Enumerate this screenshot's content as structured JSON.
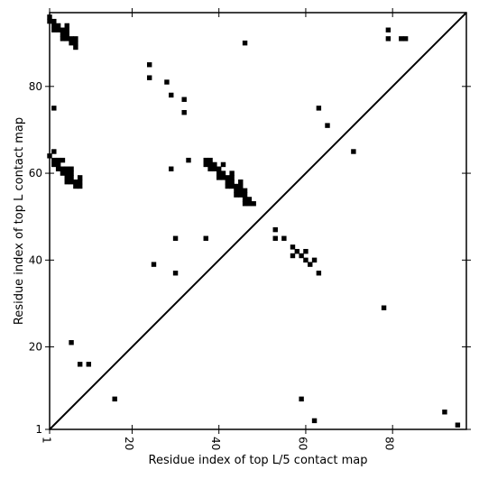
{
  "chart_data": {
    "type": "scatter",
    "xlabel": "Residue index of top L/5 contact map",
    "ylabel": "Residue index of top L contact map",
    "xlim": [
      1,
      97
    ],
    "ylim": [
      1,
      97
    ],
    "xticks": [
      1,
      20,
      40,
      60,
      80
    ],
    "yticks": [
      1,
      20,
      40,
      60,
      80
    ],
    "grid": false,
    "marker": "square",
    "marker_color": "#000000",
    "diagonal": {
      "from": [
        1,
        1
      ],
      "to": [
        97,
        97
      ]
    },
    "series": [
      {
        "points": [
          [
            1,
            96
          ],
          [
            1,
            95
          ],
          [
            2,
            95
          ],
          [
            2,
            94
          ],
          [
            2,
            93
          ],
          [
            3,
            94
          ],
          [
            3,
            93
          ],
          [
            4,
            93
          ],
          [
            4,
            92
          ],
          [
            4,
            91
          ],
          [
            5,
            94
          ],
          [
            5,
            93
          ],
          [
            5,
            92
          ],
          [
            5,
            91
          ],
          [
            6,
            91
          ],
          [
            6,
            90
          ],
          [
            7,
            91
          ],
          [
            7,
            90
          ],
          [
            7,
            89
          ],
          [
            2,
            75
          ],
          [
            1,
            64
          ],
          [
            2,
            65
          ],
          [
            2,
            63
          ],
          [
            2,
            62
          ],
          [
            3,
            63
          ],
          [
            3,
            62
          ],
          [
            3,
            61
          ],
          [
            4,
            63
          ],
          [
            4,
            61
          ],
          [
            4,
            60
          ],
          [
            5,
            61
          ],
          [
            5,
            60
          ],
          [
            5,
            59
          ],
          [
            5,
            58
          ],
          [
            6,
            61
          ],
          [
            6,
            60
          ],
          [
            6,
            59
          ],
          [
            6,
            58
          ],
          [
            7,
            58
          ],
          [
            7,
            57
          ],
          [
            8,
            59
          ],
          [
            8,
            58
          ],
          [
            8,
            57
          ],
          [
            6,
            21
          ],
          [
            8,
            16
          ],
          [
            10,
            16
          ],
          [
            16,
            8
          ],
          [
            24,
            85
          ],
          [
            24,
            82
          ],
          [
            28,
            81
          ],
          [
            29,
            78
          ],
          [
            32,
            77
          ],
          [
            32,
            74
          ],
          [
            29,
            61
          ],
          [
            33,
            63
          ],
          [
            37,
            63
          ],
          [
            37,
            62
          ],
          [
            38,
            63
          ],
          [
            38,
            62
          ],
          [
            38,
            61
          ],
          [
            39,
            62
          ],
          [
            39,
            61
          ],
          [
            40,
            61
          ],
          [
            40,
            60
          ],
          [
            40,
            59
          ],
          [
            41,
            62
          ],
          [
            41,
            60
          ],
          [
            41,
            59
          ],
          [
            42,
            59
          ],
          [
            42,
            58
          ],
          [
            42,
            57
          ],
          [
            43,
            60
          ],
          [
            43,
            59
          ],
          [
            43,
            58
          ],
          [
            43,
            57
          ],
          [
            44,
            57
          ],
          [
            44,
            56
          ],
          [
            44,
            55
          ],
          [
            45,
            58
          ],
          [
            45,
            57
          ],
          [
            45,
            56
          ],
          [
            45,
            55
          ],
          [
            46,
            56
          ],
          [
            46,
            55
          ],
          [
            46,
            54
          ],
          [
            46,
            53
          ],
          [
            47,
            54
          ],
          [
            47,
            53
          ],
          [
            48,
            53
          ],
          [
            46,
            90
          ],
          [
            30,
            45
          ],
          [
            37,
            45
          ],
          [
            25,
            39
          ],
          [
            30,
            37
          ],
          [
            53,
            47
          ],
          [
            53,
            45
          ],
          [
            55,
            45
          ],
          [
            57,
            43
          ],
          [
            57,
            41
          ],
          [
            58,
            42
          ],
          [
            59,
            41
          ],
          [
            60,
            42
          ],
          [
            60,
            40
          ],
          [
            61,
            39
          ],
          [
            62,
            40
          ],
          [
            63,
            37
          ],
          [
            63,
            75
          ],
          [
            65,
            71
          ],
          [
            71,
            65
          ],
          [
            78,
            29
          ],
          [
            79,
            93
          ],
          [
            79,
            91
          ],
          [
            82,
            91
          ],
          [
            83,
            91
          ],
          [
            59,
            8
          ],
          [
            62,
            3
          ],
          [
            92,
            5
          ],
          [
            95,
            2
          ]
        ]
      }
    ]
  }
}
